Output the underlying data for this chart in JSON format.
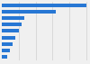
{
  "values": [
    490,
    310,
    130,
    115,
    100,
    80,
    60,
    45,
    30
  ],
  "bar_color": "#2777d4",
  "background_color": "#f0f0f0",
  "grid_color": "#d0d0d0",
  "n_gridlines": 5
}
